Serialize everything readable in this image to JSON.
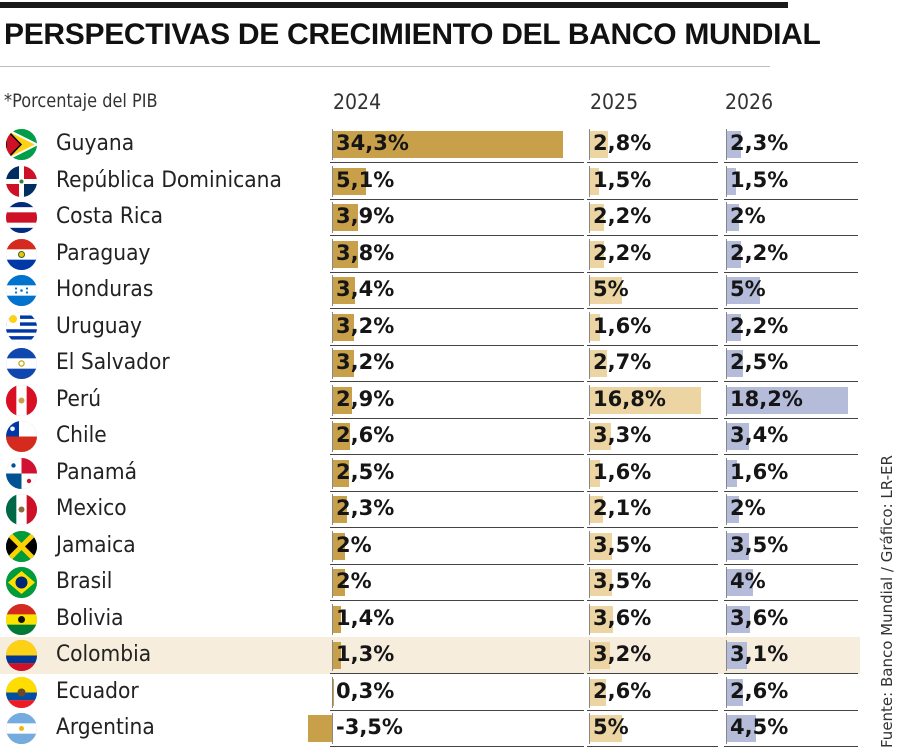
{
  "title": "PERSPECTIVAS DE CRECIMIENTO DEL BANCO MUNDIAL",
  "subtitle": "*Porcentaje del PIB",
  "source": "Fuente: Banco Mundial / Gráfico: LR-ER",
  "colors": {
    "y2024": "#c9a04a",
    "y2025": "#ecd5a3",
    "y2026": "#b5bcd9",
    "highlight": "#f6eddc"
  },
  "chart_data": {
    "type": "bar",
    "series": [
      {
        "name": "2024",
        "values": [
          34.3,
          5.1,
          3.9,
          3.8,
          3.4,
          3.2,
          3.2,
          2.9,
          2.6,
          2.5,
          2.3,
          2.0,
          2.0,
          1.4,
          1.3,
          0.3,
          -3.5
        ]
      },
      {
        "name": "2025",
        "values": [
          2.8,
          1.5,
          2.2,
          2.2,
          5.0,
          1.6,
          2.7,
          16.8,
          3.3,
          1.6,
          2.1,
          3.5,
          3.5,
          3.6,
          3.2,
          2.6,
          5.0
        ]
      },
      {
        "name": "2026",
        "values": [
          2.3,
          1.5,
          2.0,
          2.2,
          5.0,
          2.2,
          2.5,
          18.2,
          3.4,
          1.6,
          2.0,
          3.5,
          4.0,
          3.6,
          3.1,
          2.6,
          4.5
        ]
      }
    ],
    "labels": {
      "2024": [
        "34,3%",
        "5,1%",
        "3,9%",
        "3,8%",
        "3,4%",
        "3,2%",
        "3,2%",
        "2,9%",
        "2,6%",
        "2,5%",
        "2,3%",
        "2%",
        "2%",
        "1,4%",
        "1,3%",
        "0,3%",
        "-3,5%"
      ],
      "2025": [
        "2,8%",
        "1,5%",
        "2,2%",
        "2,2%",
        "5%",
        "1,6%",
        "2,7%",
        "16,8%",
        "3,3%",
        "1,6%",
        "2,1%",
        "3,5%",
        "3,5%",
        "3,6%",
        "3,2%",
        "2,6%",
        "5%"
      ],
      "2026": [
        "2,3%",
        "1,5%",
        "2%",
        "2,2%",
        "5%",
        "2,2%",
        "2,5%",
        "18,2%",
        "3,4%",
        "1,6%",
        "2%",
        "3,5%",
        "4%",
        "3,6%",
        "3,1%",
        "2,6%",
        "4,5%"
      ]
    },
    "categories": [
      "Guyana",
      "República Dominicana",
      "Costa Rica",
      "Paraguay",
      "Honduras",
      "Uruguay",
      "El Salvador",
      "Perú",
      "Chile",
      "Panamá",
      "Mexico",
      "Jamaica",
      "Brasil",
      "Bolivia",
      "Colombia",
      "Ecuador",
      "Argentina"
    ],
    "highlighted": "Colombia"
  },
  "flags": [
    "guyana-flag-icon",
    "dominican-republic-flag-icon",
    "costa-rica-flag-icon",
    "paraguay-flag-icon",
    "honduras-flag-icon",
    "uruguay-flag-icon",
    "el-salvador-flag-icon",
    "peru-flag-icon",
    "chile-flag-icon",
    "panama-flag-icon",
    "mexico-flag-icon",
    "jamaica-flag-icon",
    "brazil-flag-icon",
    "bolivia-flag-icon",
    "colombia-flag-icon",
    "ecuador-flag-icon",
    "argentina-flag-icon"
  ]
}
